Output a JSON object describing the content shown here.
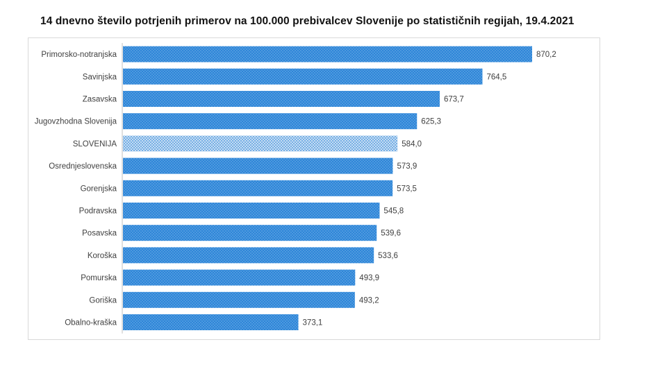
{
  "chart_data": {
    "type": "bar",
    "orientation": "horizontal",
    "title": "14 dnevno število potrjenih primerov na 100.000 prebivalcev Slovenije po statističnih regijah, 19.4.2021",
    "xlabel": "",
    "ylabel": "",
    "grid": false,
    "legend": "none",
    "categories": [
      "Primorsko-notranjska",
      "Savinjska",
      "Zasavska",
      "Jugovzhodna Slovenija",
      "SLOVENIJA",
      "Osrednjeslovenska",
      "Gorenjska",
      "Podravska",
      "Posavska",
      "Koroška",
      "Pomurska",
      "Goriška",
      "Obalno-kraška"
    ],
    "values": [
      870.2,
      764.5,
      673.7,
      625.3,
      584.0,
      573.9,
      573.5,
      545.8,
      539.6,
      533.6,
      493.9,
      493.2,
      373.1
    ],
    "value_labels": [
      "870,2",
      "764,5",
      "673,7",
      "625,3",
      "584,0",
      "573,9",
      "573,5",
      "545,8",
      "539,6",
      "533,6",
      "493,9",
      "493,2",
      "373,1"
    ],
    "highlight_category": "SLOVENIJA",
    "xlim": [
      0,
      1000
    ],
    "colors": {
      "bar": "#2e86d8",
      "bar_highlight": "#2e86d8",
      "highlight_fill": "#dbe9f7"
    }
  }
}
